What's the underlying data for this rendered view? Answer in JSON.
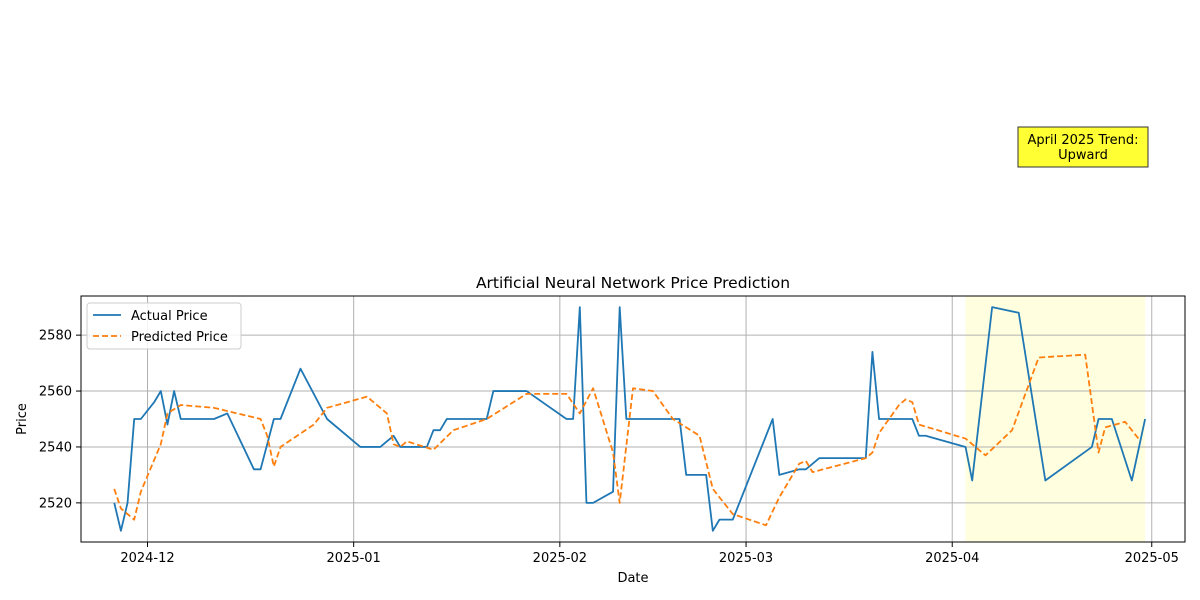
{
  "chart_data": {
    "type": "line",
    "title": "Artificial Neural Network Price Prediction",
    "xlabel": "Date",
    "ylabel": "Price",
    "xlim": [
      "2024-11-21",
      "2025-05-06"
    ],
    "ylim": [
      2506,
      2594
    ],
    "x_ticks": [
      "2024-12-01",
      "2025-01-01",
      "2025-02-01",
      "2025-03-01",
      "2025-04-01",
      "2025-05-01"
    ],
    "x_tick_labels": [
      "2024-12",
      "2025-01",
      "2025-02",
      "2025-03",
      "2025-04",
      "2025-05"
    ],
    "y_ticks": [
      2520,
      2540,
      2560,
      2580
    ],
    "grid": true,
    "legend_placement": "upper-left",
    "highlight": {
      "start": "2025-04-03",
      "end": "2025-04-30",
      "color": "#ffffe0"
    },
    "annotation": {
      "text": "April 2025 Trend:\nUpward",
      "color": "#ffff33"
    },
    "series": [
      {
        "name": "Actual Price",
        "color": "#1f77b4",
        "style": "solid",
        "points": [
          [
            "2024-11-26",
            2520
          ],
          [
            "2024-11-27",
            2510
          ],
          [
            "2024-11-28",
            2520
          ],
          [
            "2024-11-29",
            2550
          ],
          [
            "2024-11-30",
            2550
          ],
          [
            "2024-12-02",
            2556
          ],
          [
            "2024-12-03",
            2560
          ],
          [
            "2024-12-04",
            2548
          ],
          [
            "2024-12-05",
            2560
          ],
          [
            "2024-12-06",
            2550
          ],
          [
            "2024-12-11",
            2550
          ],
          [
            "2024-12-13",
            2552
          ],
          [
            "2024-12-17",
            2532
          ],
          [
            "2024-12-18",
            2532
          ],
          [
            "2024-12-20",
            2550
          ],
          [
            "2024-12-21",
            2550
          ],
          [
            "2024-12-24",
            2568
          ],
          [
            "2024-12-28",
            2550
          ],
          [
            "2025-01-02",
            2540
          ],
          [
            "2025-01-05",
            2540
          ],
          [
            "2025-01-07",
            2544
          ],
          [
            "2025-01-08",
            2540
          ],
          [
            "2025-01-12",
            2540
          ],
          [
            "2025-01-13",
            2546
          ],
          [
            "2025-01-14",
            2546
          ],
          [
            "2025-01-15",
            2550
          ],
          [
            "2025-01-21",
            2550
          ],
          [
            "2025-01-22",
            2560
          ],
          [
            "2025-01-27",
            2560
          ],
          [
            "2025-02-02",
            2550
          ],
          [
            "2025-02-03",
            2550
          ],
          [
            "2025-02-04",
            2590
          ],
          [
            "2025-02-05",
            2520
          ],
          [
            "2025-02-06",
            2520
          ],
          [
            "2025-02-09",
            2524
          ],
          [
            "2025-02-10",
            2590
          ],
          [
            "2025-02-11",
            2550
          ],
          [
            "2025-02-19",
            2550
          ],
          [
            "2025-02-20",
            2530
          ],
          [
            "2025-02-23",
            2530
          ],
          [
            "2025-02-24",
            2510
          ],
          [
            "2025-02-25",
            2514
          ],
          [
            "2025-02-27",
            2514
          ],
          [
            "2025-03-05",
            2550
          ],
          [
            "2025-03-06",
            2530
          ],
          [
            "2025-03-09",
            2532
          ],
          [
            "2025-03-10",
            2532
          ],
          [
            "2025-03-12",
            2536
          ],
          [
            "2025-03-19",
            2536
          ],
          [
            "2025-03-20",
            2574
          ],
          [
            "2025-03-21",
            2550
          ],
          [
            "2025-03-26",
            2550
          ],
          [
            "2025-03-27",
            2544
          ],
          [
            "2025-03-28",
            2544
          ],
          [
            "2025-04-03",
            2540
          ],
          [
            "2025-04-04",
            2528
          ],
          [
            "2025-04-07",
            2590
          ],
          [
            "2025-04-11",
            2588
          ],
          [
            "2025-04-15",
            2528
          ],
          [
            "2025-04-22",
            2540
          ],
          [
            "2025-04-23",
            2550
          ],
          [
            "2025-04-25",
            2550
          ],
          [
            "2025-04-28",
            2528
          ],
          [
            "2025-04-30",
            2550
          ]
        ]
      },
      {
        "name": "Predicted Price",
        "color": "#ff7f0e",
        "style": "dashed",
        "points": [
          [
            "2024-11-26",
            2525
          ],
          [
            "2024-11-27",
            2518
          ],
          [
            "2024-11-29",
            2514
          ],
          [
            "2024-11-30",
            2524
          ],
          [
            "2024-12-03",
            2541
          ],
          [
            "2024-12-04",
            2552
          ],
          [
            "2024-12-06",
            2555
          ],
          [
            "2024-12-11",
            2554
          ],
          [
            "2024-12-18",
            2550
          ],
          [
            "2024-12-19",
            2544
          ],
          [
            "2024-12-20",
            2533
          ],
          [
            "2024-12-21",
            2540
          ],
          [
            "2024-12-26",
            2548
          ],
          [
            "2024-12-28",
            2554
          ],
          [
            "2025-01-03",
            2558
          ],
          [
            "2025-01-06",
            2552
          ],
          [
            "2025-01-07",
            2541
          ],
          [
            "2025-01-08",
            2540
          ],
          [
            "2025-01-09",
            2542
          ],
          [
            "2025-01-13",
            2539
          ],
          [
            "2025-01-16",
            2546
          ],
          [
            "2025-01-21",
            2550
          ],
          [
            "2025-01-27",
            2559
          ],
          [
            "2025-02-02",
            2559
          ],
          [
            "2025-02-04",
            2552
          ],
          [
            "2025-02-06",
            2561
          ],
          [
            "2025-02-09",
            2538
          ],
          [
            "2025-02-10",
            2520
          ],
          [
            "2025-02-12",
            2561
          ],
          [
            "2025-02-15",
            2560
          ],
          [
            "2025-02-18",
            2550
          ],
          [
            "2025-02-22",
            2544
          ],
          [
            "2025-02-24",
            2525
          ],
          [
            "2025-02-27",
            2516
          ],
          [
            "2025-03-04",
            2512
          ],
          [
            "2025-03-06",
            2522
          ],
          [
            "2025-03-09",
            2534
          ],
          [
            "2025-03-10",
            2535
          ],
          [
            "2025-03-11",
            2531
          ],
          [
            "2025-03-19",
            2536
          ],
          [
            "2025-03-20",
            2538
          ],
          [
            "2025-03-21",
            2545
          ],
          [
            "2025-03-24",
            2555
          ],
          [
            "2025-03-25",
            2557
          ],
          [
            "2025-03-26",
            2556
          ],
          [
            "2025-03-27",
            2548
          ],
          [
            "2025-04-03",
            2543
          ],
          [
            "2025-04-06",
            2537
          ],
          [
            "2025-04-10",
            2546
          ],
          [
            "2025-04-14",
            2572
          ],
          [
            "2025-04-21",
            2573
          ],
          [
            "2025-04-23",
            2538
          ],
          [
            "2025-04-24",
            2547
          ],
          [
            "2025-04-27",
            2549
          ],
          [
            "2025-04-29",
            2543
          ]
        ]
      }
    ]
  }
}
